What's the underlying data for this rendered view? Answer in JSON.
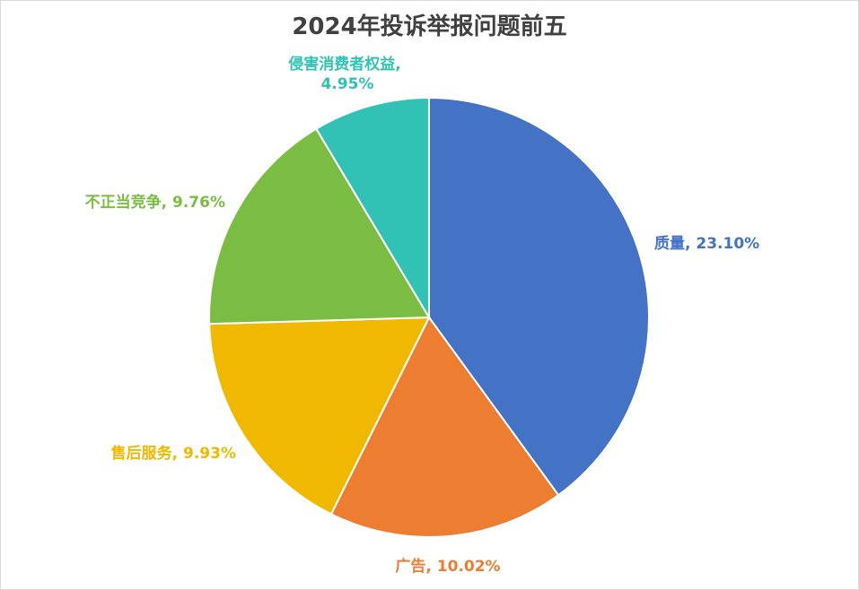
{
  "chart_data": {
    "type": "pie",
    "title": "2024年投诉举报问题前五",
    "slices": [
      {
        "label": "质量",
        "value": 23.1,
        "display": "23.10%",
        "color": "#4472C4"
      },
      {
        "label": "广告",
        "value": 10.02,
        "display": "10.02%",
        "color": "#ED7D31"
      },
      {
        "label": "售后服务",
        "value": 9.93,
        "display": "9.93%",
        "color": "#F0B900"
      },
      {
        "label": "不正当竞争",
        "value": 9.76,
        "display": "9.76%",
        "color": "#7ABD42"
      },
      {
        "label": "侵害消费者权益",
        "value": 4.95,
        "display": "4.95%",
        "color": "#31C2B5"
      }
    ],
    "legend": "none",
    "start": "top, clockwise"
  }
}
